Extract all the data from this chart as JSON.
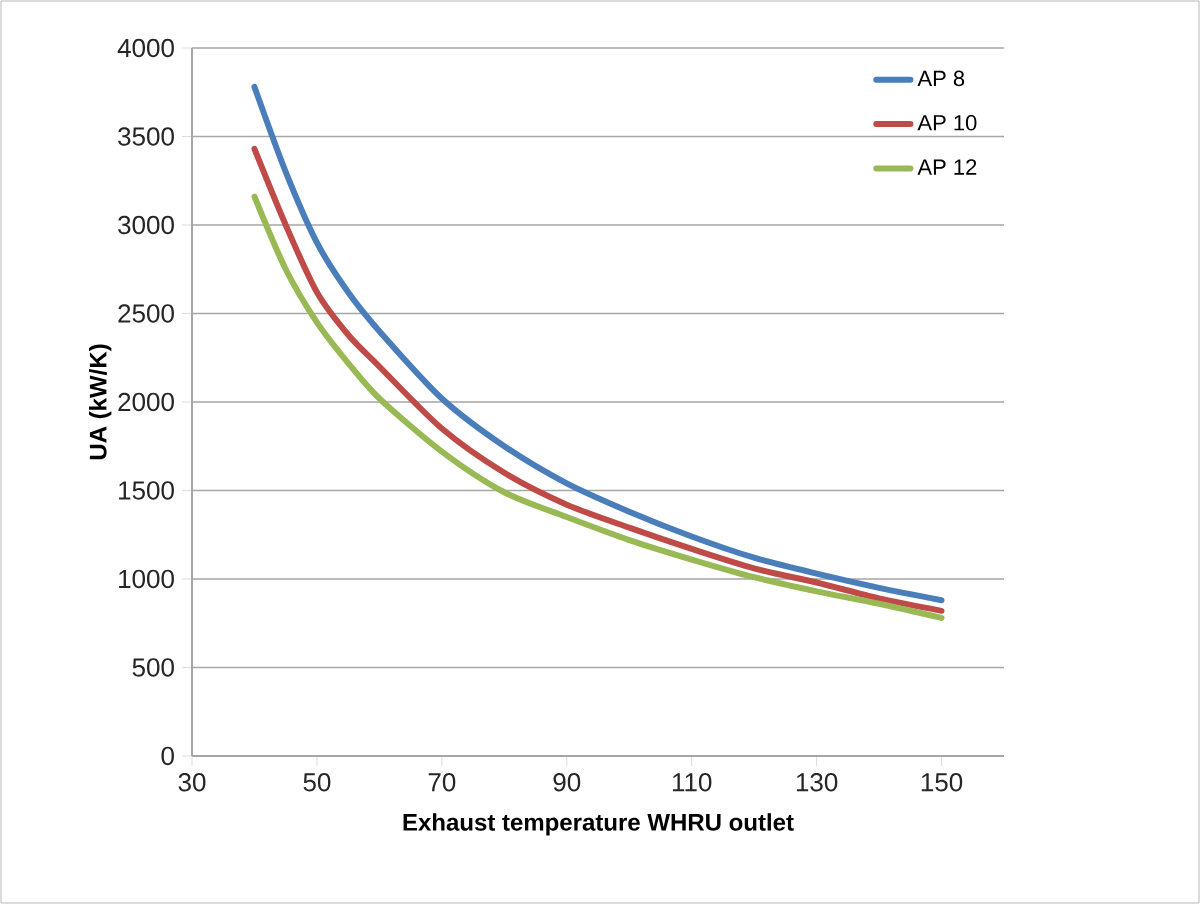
{
  "chart_data": {
    "type": "line",
    "xlabel": "Exhaust temperature WHRU  outlet",
    "ylabel": "UA (kW/K)",
    "x": [
      40,
      45,
      50,
      55,
      60,
      70,
      80,
      90,
      100,
      110,
      120,
      130,
      140,
      150
    ],
    "series": [
      {
        "name": "AP 8",
        "color": "#4a7ebb",
        "values": [
          3780,
          3300,
          2900,
          2620,
          2400,
          2020,
          1750,
          1540,
          1380,
          1240,
          1120,
          1030,
          950,
          880
        ]
      },
      {
        "name": "AP 10",
        "color": "#be4b48",
        "values": [
          3430,
          3000,
          2620,
          2380,
          2200,
          1850,
          1600,
          1420,
          1290,
          1170,
          1060,
          980,
          890,
          820
        ]
      },
      {
        "name": "AP 12",
        "color": "#98b954",
        "values": [
          3160,
          2750,
          2450,
          2220,
          2020,
          1720,
          1490,
          1350,
          1220,
          1110,
          1010,
          930,
          860,
          780
        ]
      }
    ],
    "xlim": [
      30,
      160
    ],
    "xticks": [
      30,
      50,
      70,
      90,
      110,
      130,
      150
    ],
    "ylim": [
      0,
      4000
    ],
    "yticks": [
      0,
      500,
      1000,
      1500,
      2000,
      2500,
      3000,
      3500,
      4000
    ],
    "grid": "y",
    "legend": "top right",
    "marker": "none",
    "line_style": "solid"
  }
}
